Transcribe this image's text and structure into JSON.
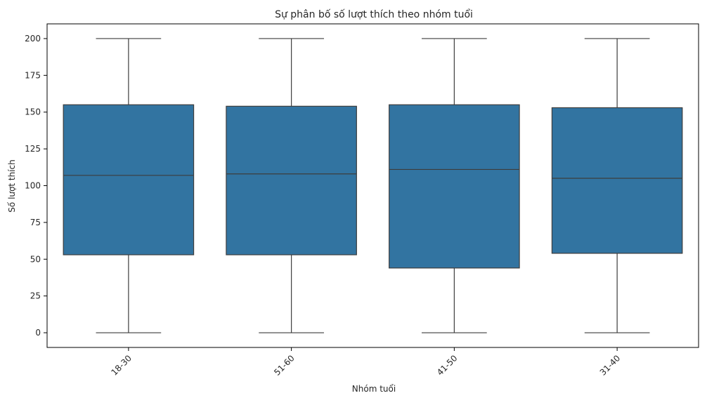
{
  "chart_data": {
    "type": "box",
    "title": "Sự phân bố số lượt thích theo nhóm tuổi",
    "xlabel": "Nhóm tuổi",
    "ylabel": "Số lượt thích",
    "ylim": [
      -10,
      210
    ],
    "yticks": [
      0,
      25,
      50,
      75,
      100,
      125,
      150,
      175,
      200
    ],
    "xtick_rotation": 45,
    "grid": false,
    "color": "#3274a1",
    "line_color": "#3d3d3d",
    "categories": [
      "18-30",
      "51-60",
      "41-50",
      "31-40"
    ],
    "boxes": [
      {
        "category": "18-30",
        "min": 0,
        "q1": 53,
        "median": 107,
        "q3": 155,
        "max": 200
      },
      {
        "category": "51-60",
        "min": 0,
        "q1": 53,
        "median": 108,
        "q3": 154,
        "max": 200
      },
      {
        "category": "41-50",
        "min": 0,
        "q1": 44,
        "median": 111,
        "q3": 155,
        "max": 200
      },
      {
        "category": "31-40",
        "min": 0,
        "q1": 54,
        "median": 105,
        "q3": 153,
        "max": 200
      }
    ]
  }
}
